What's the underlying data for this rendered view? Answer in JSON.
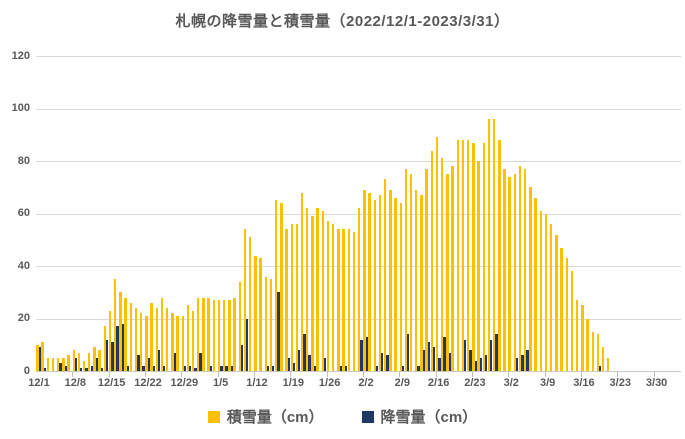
{
  "chart_data": {
    "type": "bar",
    "title": "札幌の降雪量と積雪量（2022/12/1-2023/3/31）",
    "xlabel": "",
    "ylabel": "",
    "ylim": [
      0,
      120
    ],
    "y_ticks": [
      0,
      20,
      40,
      60,
      80,
      100,
      120
    ],
    "x_tick_labels": [
      "12/1",
      "12/8",
      "12/15",
      "12/22",
      "12/29",
      "1/5",
      "1/12",
      "1/19",
      "1/26",
      "2/2",
      "2/9",
      "2/16",
      "2/23",
      "3/2",
      "3/9",
      "3/16",
      "3/23",
      "3/30"
    ],
    "days_per_tick": 7,
    "grid": "horizontal",
    "legend_position": "bottom",
    "series": [
      {
        "name": "積雪量（cm）",
        "color": "#FFC000",
        "values": [
          10,
          11,
          5,
          5,
          5,
          5,
          6,
          8,
          7,
          4,
          7,
          9,
          8,
          17,
          23,
          35,
          30,
          28,
          26,
          24,
          22,
          21,
          26,
          24,
          28,
          24,
          22,
          21,
          21,
          25,
          23,
          28,
          28,
          28,
          27,
          27,
          27,
          27,
          28,
          34,
          54,
          51,
          44,
          43,
          36,
          35,
          65,
          64,
          54,
          56,
          56,
          68,
          62,
          59,
          62,
          61,
          57,
          56,
          54,
          54,
          54,
          53,
          62,
          69,
          68,
          65,
          67,
          73,
          69,
          66,
          64,
          77,
          75,
          69,
          67,
          77,
          84,
          89,
          81,
          75,
          78,
          88,
          88,
          88,
          87,
          80,
          87,
          96,
          96,
          88,
          77,
          74,
          75,
          78,
          77,
          70,
          66,
          61,
          60,
          56,
          52,
          47,
          43,
          38,
          27,
          25,
          20,
          15,
          14,
          9,
          5,
          0,
          0,
          0,
          0,
          0,
          0,
          0,
          0,
          0,
          0
        ]
      },
      {
        "name": "降雪量（cm）",
        "color": "#1F3864",
        "values": [
          9,
          1,
          0,
          0,
          3,
          2,
          0,
          5,
          1,
          1,
          2,
          5,
          1,
          12,
          11,
          17,
          18,
          2,
          0,
          6,
          2,
          5,
          2,
          8,
          2,
          0,
          7,
          0,
          2,
          2,
          1,
          7,
          0,
          2,
          0,
          2,
          2,
          2,
          0,
          10,
          20,
          0,
          0,
          0,
          2,
          2,
          30,
          0,
          5,
          3,
          8,
          14,
          6,
          2,
          0,
          5,
          0,
          0,
          2,
          2,
          0,
          0,
          12,
          13,
          0,
          2,
          7,
          6,
          0,
          0,
          2,
          14,
          0,
          2,
          8,
          11,
          9,
          5,
          13,
          7,
          0,
          0,
          12,
          8,
          4,
          5,
          6,
          12,
          14,
          0,
          0,
          0,
          5,
          6,
          8,
          0,
          0,
          0,
          0,
          0,
          0,
          0,
          0,
          0,
          0,
          0,
          0,
          0,
          2,
          0,
          0,
          0,
          0,
          0,
          0,
          0,
          0,
          0,
          0,
          0,
          0
        ]
      }
    ]
  },
  "legend": {
    "depth_label": "積雪量（cm）",
    "snowfall_label": "降雪量（cm）"
  }
}
